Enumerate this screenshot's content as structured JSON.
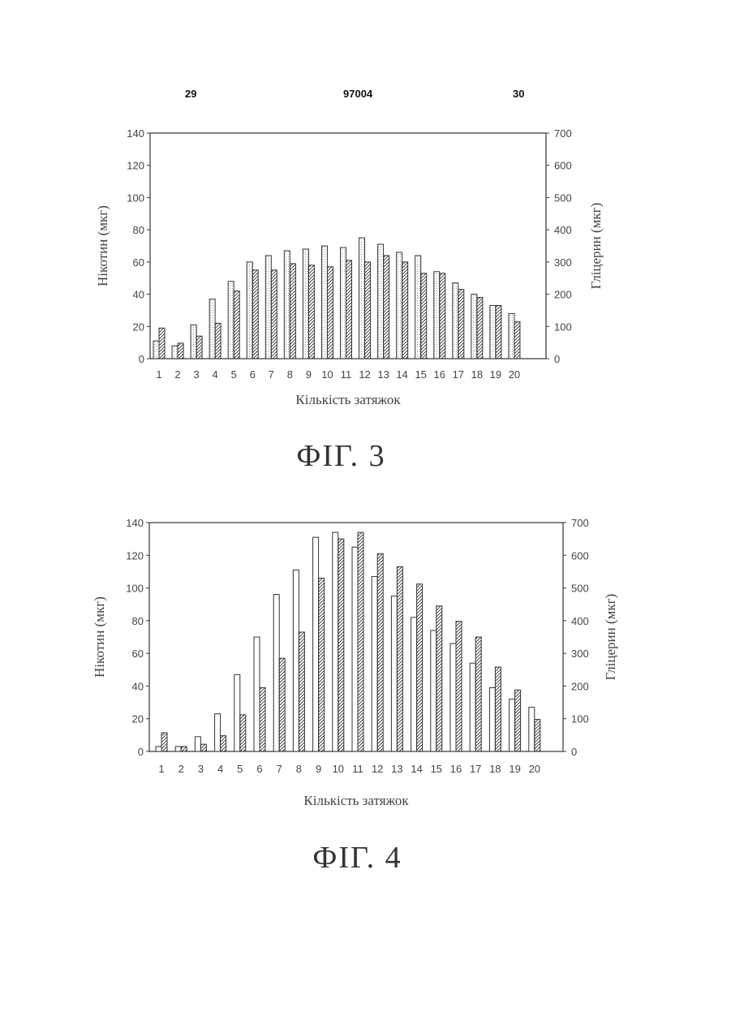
{
  "header": {
    "left": "29",
    "center": "97004",
    "right": "30"
  },
  "figures": [
    {
      "caption": "ФІГ. 3"
    },
    {
      "caption": "ФІГ. 4"
    }
  ],
  "chart_data": [
    {
      "type": "bar",
      "title": "",
      "categories": [
        "1",
        "2",
        "3",
        "4",
        "5",
        "6",
        "7",
        "8",
        "9",
        "10",
        "11",
        "12",
        "13",
        "14",
        "15",
        "16",
        "17",
        "18",
        "19",
        "20"
      ],
      "xlabel": "Кількість затяжок",
      "ylabel": "Нікотин (мкг)",
      "y2label": "Гліцерин (мкг)",
      "ylim": [
        0,
        140
      ],
      "y2lim": [
        0,
        700
      ],
      "yticks": [
        0,
        20,
        40,
        60,
        80,
        100,
        120,
        140
      ],
      "y2ticks": [
        0,
        100,
        200,
        300,
        400,
        500,
        600,
        700
      ],
      "grid": false,
      "series": [
        {
          "axis": "left",
          "style": "dotted",
          "values": [
            11,
            8,
            21,
            37,
            48,
            60,
            64,
            67,
            68,
            70,
            69,
            75,
            71,
            66,
            64,
            54,
            47,
            40,
            33,
            28
          ]
        },
        {
          "axis": "right",
          "style": "hatched",
          "values": [
            95,
            48,
            70,
            110,
            210,
            275,
            275,
            295,
            290,
            285,
            305,
            300,
            320,
            300,
            265,
            265,
            215,
            190,
            165,
            115
          ]
        }
      ]
    },
    {
      "type": "bar",
      "title": "",
      "categories": [
        "1",
        "2",
        "3",
        "4",
        "5",
        "6",
        "7",
        "8",
        "9",
        "10",
        "11",
        "12",
        "13",
        "14",
        "15",
        "16",
        "17",
        "18",
        "19",
        "20"
      ],
      "xlabel": "Кількість затяжок",
      "ylabel": "Нікотин (мкг)",
      "y2label": "Гліцерин (мкг)",
      "ylim": [
        0,
        140
      ],
      "y2lim": [
        0,
        700
      ],
      "yticks": [
        0,
        20,
        40,
        60,
        80,
        100,
        120,
        140
      ],
      "y2ticks": [
        0,
        100,
        200,
        300,
        400,
        500,
        600,
        700
      ],
      "grid": false,
      "series": [
        {
          "axis": "left",
          "style": "open",
          "values": [
            3,
            3,
            9,
            23,
            47,
            70,
            96,
            111,
            131,
            134,
            125,
            107,
            95,
            82,
            74,
            66,
            54,
            39,
            32,
            27
          ]
        },
        {
          "axis": "right",
          "style": "hatched",
          "values": [
            57,
            15,
            22,
            48,
            112,
            195,
            285,
            365,
            530,
            650,
            670,
            605,
            565,
            512,
            445,
            398,
            350,
            258,
            188,
            98
          ]
        }
      ]
    }
  ]
}
